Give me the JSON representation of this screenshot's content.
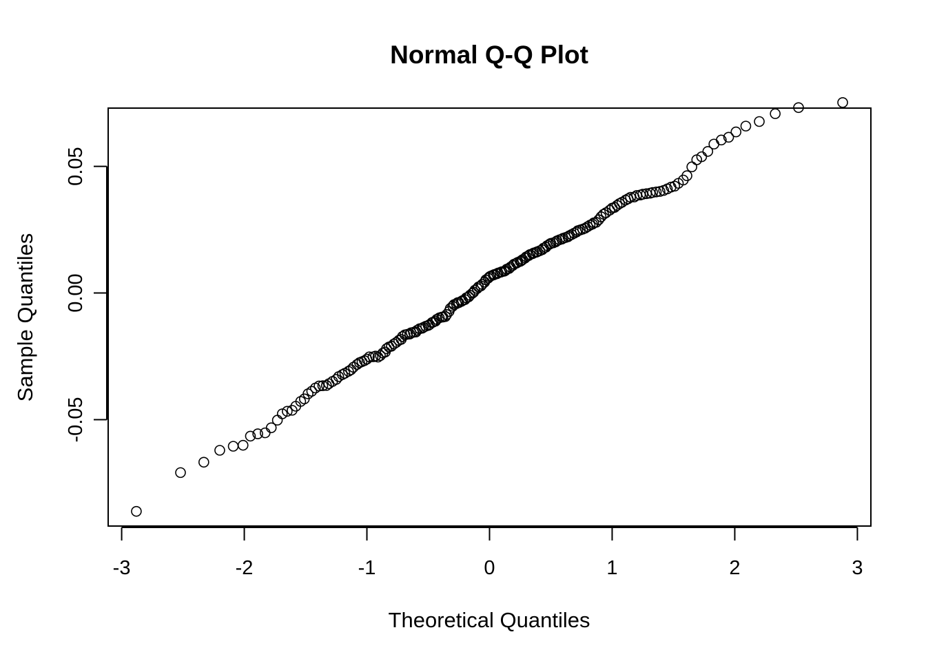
{
  "chart_data": {
    "type": "scatter",
    "title": "Normal Q-Q Plot",
    "xlabel": "Theoretical Quantiles",
    "ylabel": "Sample Quantiles",
    "xlim": [
      -3.11,
      3.11
    ],
    "ylim": [
      -0.092,
      0.073
    ],
    "x_ticks": [
      -3,
      -2,
      -1,
      0,
      1,
      2,
      3
    ],
    "x_tick_labels": [
      "-3",
      "-2",
      "-1",
      "0",
      "1",
      "2",
      "3"
    ],
    "y_ticks": [
      -0.05,
      0.0,
      0.05
    ],
    "y_tick_labels": [
      "-0.05",
      "0.00",
      "0.05"
    ],
    "grid": false,
    "marker": "open-circle",
    "colors": {
      "marker": "#000000",
      "axis": "#000000",
      "background": "#ffffff"
    },
    "x": [
      -2.88,
      -2.52,
      -2.33,
      -2.2,
      -2.09,
      -2.01,
      -1.95,
      -1.89,
      -1.83,
      -1.78,
      -1.73,
      -1.69,
      -1.65,
      -1.61,
      -1.58,
      -1.54,
      -1.51,
      -1.48,
      -1.45,
      -1.42,
      -1.39,
      -1.36,
      -1.33,
      -1.31,
      -1.28,
      -1.25,
      -1.23,
      -1.2,
      -1.18,
      -1.15,
      -1.13,
      -1.11,
      -1.08,
      -1.06,
      -1.04,
      -1.02,
      -1.0,
      -0.98,
      -0.95,
      -0.93,
      -0.91,
      -0.89,
      -0.87,
      -0.85,
      -0.84,
      -0.82,
      -0.8,
      -0.78,
      -0.76,
      -0.74,
      -0.72,
      -0.71,
      -0.69,
      -0.67,
      -0.65,
      -0.64,
      -0.62,
      -0.6,
      -0.59,
      -0.57,
      -0.55,
      -0.54,
      -0.52,
      -0.5,
      -0.49,
      -0.47,
      -0.46,
      -0.44,
      -0.43,
      -0.41,
      -0.39,
      -0.38,
      -0.36,
      -0.35,
      -0.33,
      -0.32,
      -0.3,
      -0.29,
      -0.27,
      -0.26,
      -0.25,
      -0.23,
      -0.22,
      -0.2,
      -0.19,
      -0.17,
      -0.16,
      -0.14,
      -0.13,
      -0.12,
      -0.1,
      -0.09,
      -0.07,
      -0.06,
      -0.04,
      -0.03,
      -0.01,
      0.0,
      0.01,
      0.03,
      0.04,
      0.06,
      0.07,
      0.09,
      0.1,
      0.12,
      0.13,
      0.14,
      0.16,
      0.17,
      0.19,
      0.2,
      0.22,
      0.23,
      0.25,
      0.26,
      0.27,
      0.29,
      0.3,
      0.32,
      0.33,
      0.35,
      0.36,
      0.38,
      0.39,
      0.41,
      0.43,
      0.44,
      0.46,
      0.47,
      0.49,
      0.5,
      0.52,
      0.54,
      0.55,
      0.57,
      0.59,
      0.6,
      0.62,
      0.64,
      0.65,
      0.67,
      0.69,
      0.71,
      0.72,
      0.74,
      0.76,
      0.78,
      0.8,
      0.82,
      0.84,
      0.85,
      0.87,
      0.89,
      0.91,
      0.93,
      0.95,
      0.98,
      1.0,
      1.02,
      1.04,
      1.06,
      1.08,
      1.11,
      1.13,
      1.15,
      1.18,
      1.2,
      1.23,
      1.25,
      1.28,
      1.31,
      1.33,
      1.36,
      1.39,
      1.42,
      1.45,
      1.48,
      1.51,
      1.54,
      1.58,
      1.61,
      1.65,
      1.69,
      1.73,
      1.78,
      1.83,
      1.89,
      1.95,
      2.01,
      2.09,
      2.2,
      2.33,
      2.52,
      2.88
    ],
    "y": [
      -0.0862,
      -0.0709,
      -0.0668,
      -0.0621,
      -0.0605,
      -0.0601,
      -0.0565,
      -0.0556,
      -0.0552,
      -0.0532,
      -0.0502,
      -0.0477,
      -0.0467,
      -0.0463,
      -0.0447,
      -0.0428,
      -0.0418,
      -0.0398,
      -0.0388,
      -0.0375,
      -0.0367,
      -0.0366,
      -0.0365,
      -0.0358,
      -0.0349,
      -0.0341,
      -0.033,
      -0.0322,
      -0.0317,
      -0.0309,
      -0.0303,
      -0.0293,
      -0.0282,
      -0.0275,
      -0.0271,
      -0.0267,
      -0.0261,
      -0.0252,
      -0.0252,
      -0.0249,
      -0.0253,
      -0.0247,
      -0.0237,
      -0.0233,
      -0.022,
      -0.0213,
      -0.021,
      -0.0201,
      -0.0195,
      -0.0187,
      -0.0183,
      -0.0172,
      -0.0165,
      -0.0163,
      -0.0162,
      -0.0157,
      -0.0155,
      -0.0154,
      -0.0147,
      -0.0141,
      -0.0139,
      -0.0136,
      -0.0131,
      -0.0128,
      -0.0125,
      -0.0117,
      -0.0115,
      -0.0111,
      -0.0104,
      -0.0098,
      -0.0095,
      -0.0095,
      -0.0093,
      -0.0085,
      -0.0073,
      -0.0061,
      -0.0052,
      -0.0046,
      -0.0042,
      -0.0038,
      -0.0038,
      -0.0033,
      -0.003,
      -0.0026,
      -0.0019,
      -0.0015,
      -0.0009,
      -0.0001,
      0.0003,
      0.0011,
      0.0018,
      0.0024,
      0.0028,
      0.0034,
      0.0043,
      0.0052,
      0.0059,
      0.0064,
      0.0067,
      0.0071,
      0.0073,
      0.0076,
      0.0079,
      0.0082,
      0.0084,
      0.0086,
      0.0089,
      0.0094,
      0.0097,
      0.0102,
      0.0109,
      0.0114,
      0.0118,
      0.0121,
      0.0125,
      0.0128,
      0.0132,
      0.0138,
      0.0143,
      0.0148,
      0.0152,
      0.0155,
      0.0158,
      0.0161,
      0.0163,
      0.0167,
      0.0171,
      0.0177,
      0.0181,
      0.0187,
      0.0193,
      0.0196,
      0.0198,
      0.0202,
      0.0206,
      0.021,
      0.0213,
      0.0216,
      0.0219,
      0.0222,
      0.0226,
      0.0231,
      0.0236,
      0.0241,
      0.0246,
      0.0249,
      0.0252,
      0.0256,
      0.0262,
      0.0268,
      0.0272,
      0.0277,
      0.0279,
      0.0289,
      0.0301,
      0.0311,
      0.0317,
      0.0327,
      0.0335,
      0.0338,
      0.0346,
      0.0353,
      0.0358,
      0.0367,
      0.0372,
      0.0378,
      0.0379,
      0.0385,
      0.0387,
      0.039,
      0.0392,
      0.0394,
      0.0397,
      0.0399,
      0.0401,
      0.0405,
      0.0411,
      0.0418,
      0.0422,
      0.0433,
      0.0446,
      0.0463,
      0.0498,
      0.0526,
      0.0538,
      0.0559,
      0.0588,
      0.0604,
      0.0615,
      0.0636,
      0.0659,
      0.0677,
      0.0708,
      0.0732,
      0.0752
    ]
  }
}
